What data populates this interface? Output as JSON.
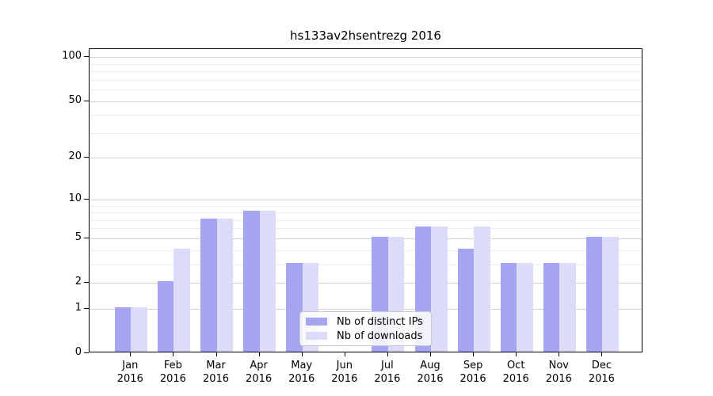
{
  "chart_data": {
    "type": "bar",
    "title": "hs133av2hsentrezg 2016",
    "categories": [
      "Jan",
      "Feb",
      "Mar",
      "Apr",
      "May",
      "Jun",
      "Jul",
      "Aug",
      "Sep",
      "Oct",
      "Nov",
      "Dec"
    ],
    "year_label": "2016",
    "series": [
      {
        "name": "Nb of distinct IPs",
        "color": "#a5a5f2",
        "values": [
          1,
          2,
          7,
          8,
          3,
          0,
          5,
          6,
          4,
          3,
          3,
          5
        ]
      },
      {
        "name": "Nb of downloads",
        "color": "#dcdcf9",
        "values": [
          1,
          4,
          7,
          8,
          3,
          0,
          5,
          6,
          6,
          3,
          3,
          5
        ]
      }
    ],
    "yticks": [
      0,
      1,
      2,
      5,
      10,
      20,
      50,
      100
    ],
    "minor_yticks": [
      3,
      4,
      6,
      7,
      8,
      9,
      30,
      40,
      60,
      70,
      80,
      90
    ],
    "scale": "log1p",
    "ylim": [
      0,
      113
    ],
    "grid": true,
    "legend_position": "lower-center",
    "legend": [
      "Nb of distinct IPs",
      "Nb of downloads"
    ],
    "colors": {
      "grid_major": "#d4d4d4",
      "grid_minor": "#ececec",
      "axis": "#000000",
      "legend_border": "#c9c9c9",
      "text": "#000000"
    }
  }
}
